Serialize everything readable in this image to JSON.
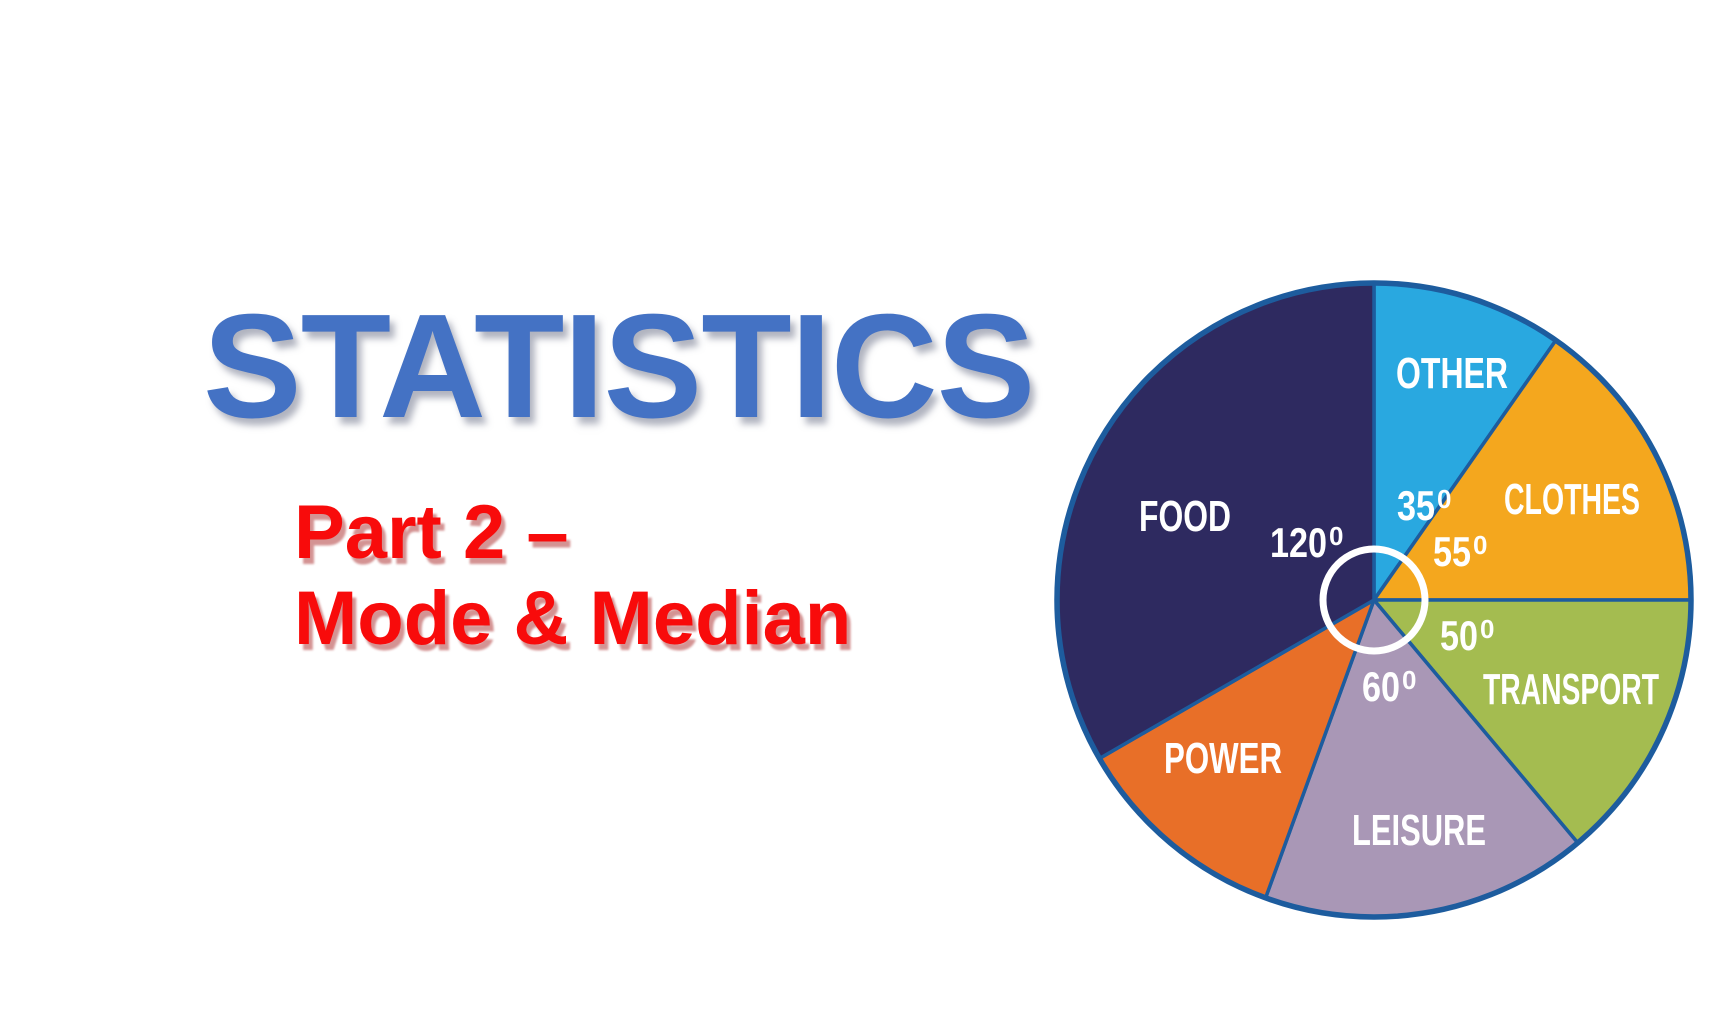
{
  "slide": {
    "title": "STATISTICS",
    "title_color": "#4472C4",
    "subtitle_line1": "Part 2 –",
    "subtitle_line2": "Mode & Median",
    "subtitle_color": "#F80B0B"
  },
  "chart_data": {
    "type": "pie",
    "description": "Pie chart of spending categories, slice sizes given as angles in degrees, starting at 12 o'clock going clockwise",
    "unit": "degrees",
    "total_degrees": 360,
    "grid": false,
    "legend": false,
    "outline_color": "#1D5C9E",
    "label_color": "#FFFFFF",
    "center_ring": {
      "shown": true,
      "color": "#FFFFFF"
    },
    "degree_symbol": "0",
    "segments": [
      {
        "label": "OTHER",
        "angle": 35,
        "angle_label": "35",
        "show_angle_label": true,
        "color": "#29A8E0"
      },
      {
        "label": "CLOTHES",
        "angle": 55,
        "angle_label": "55",
        "show_angle_label": true,
        "color": "#F4A71E"
      },
      {
        "label": "TRANSPORT",
        "angle": 50,
        "angle_label": "50",
        "show_angle_label": true,
        "color": "#A4BC50"
      },
      {
        "label": "LEISURE",
        "angle": 60,
        "angle_label": "60",
        "show_angle_label": true,
        "color": "#A997B6"
      },
      {
        "label": "POWER",
        "angle": 40,
        "angle_label": "",
        "show_angle_label": false,
        "color": "#E86F28"
      },
      {
        "label": "FOOD",
        "angle": 120,
        "angle_label": "120",
        "show_angle_label": true,
        "color": "#2E2A60"
      }
    ]
  }
}
